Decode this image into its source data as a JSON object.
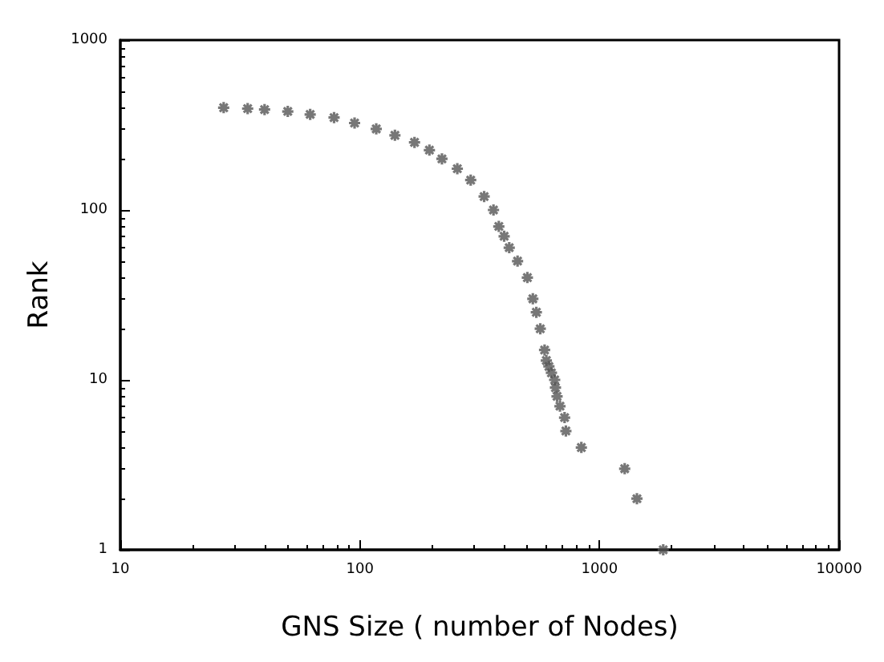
{
  "chart_data": {
    "type": "scatter",
    "xlabel": "GNS Size ( number of Nodes)",
    "ylabel": "Rank",
    "log": "xy",
    "xlim": [
      10,
      10000
    ],
    "ylim": [
      1,
      1000
    ],
    "xticks": [
      10,
      100,
      1000,
      10000
    ],
    "yticks": [
      1,
      10,
      100,
      1000
    ],
    "grid": false,
    "marker": "cross",
    "series": [
      {
        "color": "#555555",
        "x": [
          1845,
          1433,
          1274,
          840,
          724,
          715,
          684,
          665,
          655,
          650,
          630,
          615,
          600,
          590,
          566,
          545,
          527,
          500,
          455,
          420,
          400,
          380,
          361,
          330,
          290,
          255,
          220,
          195,
          169,
          140,
          117,
          95,
          78,
          62,
          50,
          40,
          34,
          27
        ],
        "values": [
          1,
          2,
          3,
          4,
          5,
          6,
          7,
          8,
          9,
          10,
          11,
          12,
          13,
          15,
          20,
          25,
          30,
          40,
          50,
          60,
          70,
          80,
          100,
          120,
          150,
          175,
          200,
          225,
          250,
          275,
          300,
          325,
          350,
          365,
          380,
          390,
          395,
          400
        ]
      }
    ]
  }
}
